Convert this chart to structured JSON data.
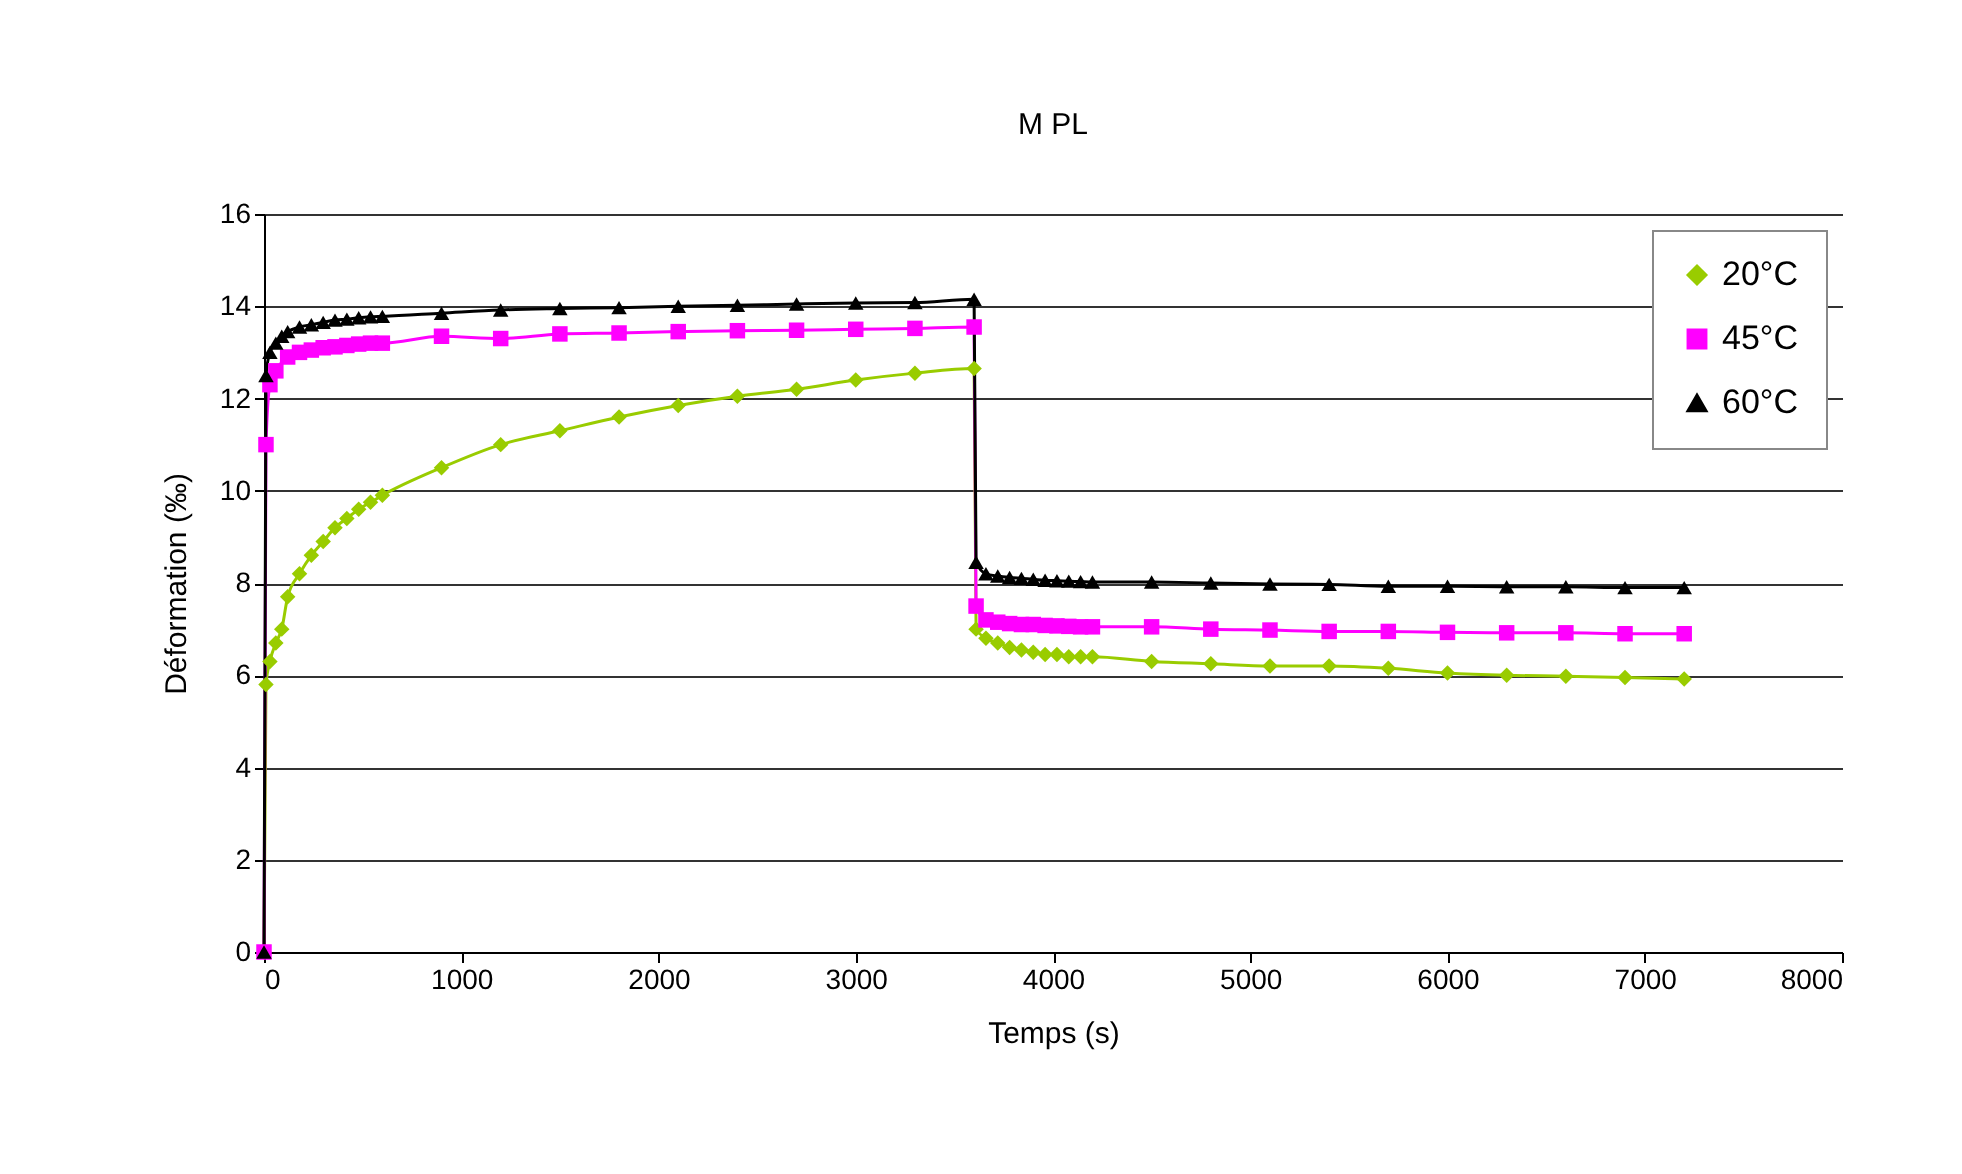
{
  "chart_data": {
    "type": "line",
    "title": "M PL",
    "xlabel": "Temps  (s)",
    "ylabel": "Déformation  (‰)",
    "x": [
      0,
      10,
      30,
      60,
      90,
      120,
      180,
      240,
      300,
      360,
      420,
      480,
      540,
      600,
      900,
      1200,
      1500,
      1800,
      2100,
      2400,
      2700,
      3000,
      3300,
      3600,
      3610,
      3660,
      3720,
      3780,
      3840,
      3900,
      3960,
      4020,
      4080,
      4140,
      4200,
      4500,
      4800,
      5100,
      5400,
      5700,
      6000,
      6300,
      6600,
      6900,
      7200
    ],
    "series": [
      {
        "name": "20°C",
        "color": "#99cc00",
        "marker": "diamond",
        "values": [
          0,
          5.8,
          6.3,
          6.7,
          7.0,
          7.7,
          8.2,
          8.6,
          8.9,
          9.2,
          9.4,
          9.6,
          9.75,
          9.9,
          10.5,
          11.0,
          11.3,
          11.6,
          11.85,
          12.05,
          12.2,
          12.4,
          12.55,
          12.65,
          7.0,
          6.8,
          6.7,
          6.6,
          6.55,
          6.5,
          6.45,
          6.45,
          6.4,
          6.4,
          6.4,
          6.3,
          6.25,
          6.2,
          6.2,
          6.15,
          6.05,
          6.0,
          5.98,
          5.95,
          5.92
        ]
      },
      {
        "name": "45°C",
        "color": "#ff00ff",
        "marker": "square",
        "values": [
          0,
          11.0,
          12.3,
          12.6,
          null,
          12.9,
          13.0,
          13.05,
          13.1,
          13.12,
          13.15,
          13.18,
          13.2,
          13.2,
          13.35,
          13.3,
          13.4,
          13.42,
          13.45,
          13.47,
          13.48,
          13.5,
          13.52,
          13.55,
          7.5,
          7.2,
          7.15,
          7.12,
          7.1,
          7.1,
          7.08,
          7.07,
          7.06,
          7.05,
          7.05,
          7.05,
          7.0,
          6.98,
          6.95,
          6.95,
          6.93,
          6.92,
          6.92,
          6.9,
          6.9
        ]
      },
      {
        "name": "60°C",
        "color": "#000000",
        "marker": "triangle",
        "values": [
          0,
          12.5,
          13.0,
          13.2,
          13.35,
          13.45,
          13.55,
          13.6,
          13.65,
          13.7,
          13.72,
          13.75,
          13.77,
          13.78,
          13.85,
          13.92,
          13.95,
          13.97,
          14.0,
          14.02,
          14.05,
          14.07,
          14.08,
          14.15,
          8.45,
          8.2,
          8.15,
          8.12,
          8.1,
          8.08,
          8.06,
          8.05,
          8.04,
          8.03,
          8.02,
          8.02,
          8.0,
          7.98,
          7.97,
          7.93,
          7.93,
          7.92,
          7.92,
          7.9,
          7.9
        ]
      }
    ],
    "xlim": [
      0,
      8000
    ],
    "xticks": [
      0,
      1000,
      2000,
      3000,
      4000,
      5000,
      6000,
      7000,
      8000
    ],
    "ylim": [
      0,
      16
    ],
    "yticks": [
      0,
      2,
      4,
      6,
      8,
      10,
      12,
      14,
      16
    ],
    "grid": "y",
    "legend": "top right",
    "line_style": "solid"
  }
}
